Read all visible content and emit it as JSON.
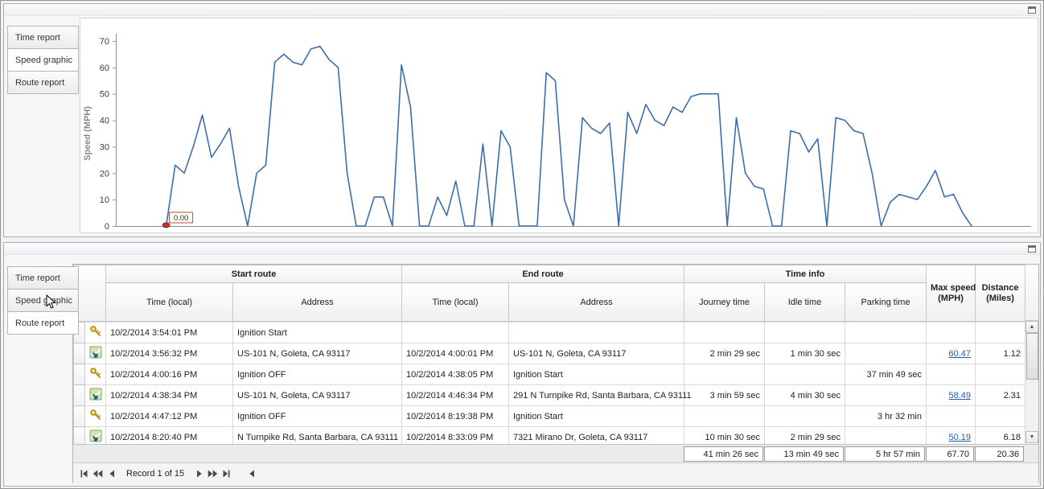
{
  "top_panel": {
    "tabs": [
      {
        "label": "Time report",
        "active": false
      },
      {
        "label": "Speed graphic",
        "active": true
      },
      {
        "label": "Route report",
        "active": false
      }
    ]
  },
  "bottom_panel": {
    "tabs": [
      {
        "label": "Time report",
        "active": false
      },
      {
        "label": "Speed graphic",
        "active": false
      },
      {
        "label": "Route report",
        "active": true
      }
    ]
  },
  "chart_data": {
    "type": "line",
    "title": "",
    "xlabel": "",
    "ylabel": "Speed (MPH)",
    "ylim": [
      0,
      70
    ],
    "yticks": [
      0,
      10,
      20,
      30,
      40,
      50,
      60,
      70
    ],
    "grid": false,
    "legend": false,
    "line_color": "#3e6ea9",
    "marker_color": "#b23b2e",
    "marker_label": "0.00",
    "values": [
      0,
      23,
      20,
      30,
      42,
      26,
      31,
      37,
      15,
      0,
      20,
      23,
      62,
      65,
      62,
      61,
      67,
      68,
      63,
      60,
      20,
      0,
      0,
      11,
      11,
      0,
      61,
      45,
      0,
      0,
      11,
      4,
      17,
      0,
      0,
      31,
      0,
      36,
      30,
      0,
      0,
      0,
      58,
      55,
      10,
      0,
      41,
      37,
      35,
      39,
      0,
      43,
      35,
      46,
      40,
      38,
      45,
      43,
      49,
      50,
      50,
      50,
      0,
      41,
      20,
      15,
      14,
      0,
      0,
      36,
      35,
      28,
      33,
      0,
      41,
      40,
      36,
      35,
      20,
      0,
      9,
      12,
      11,
      10,
      15,
      21,
      11,
      12,
      5,
      0
    ]
  },
  "table": {
    "group_headers": [
      "Start route",
      "End route",
      "Time info"
    ],
    "columns": {
      "start_time": "Time (local)",
      "start_address": "Address",
      "end_time": "Time (local)",
      "end_address": "Address",
      "journey": "Journey time",
      "idle": "Idle time",
      "parking": "Parking time",
      "max_speed_1": "Max speed",
      "max_speed_2": "(MPH)",
      "distance_1": "Distance",
      "distance_2": "(Miles)"
    },
    "link_color": "#2b5d9b",
    "rows": [
      {
        "icon": "key",
        "start_time": "10/2/2014 3:54:01 PM",
        "start_address": "Ignition Start",
        "end_time": "",
        "end_address": "",
        "journey": "",
        "idle": "",
        "parking": "",
        "max_speed": "",
        "distance": ""
      },
      {
        "icon": "route",
        "start_time": "10/2/2014 3:56:32 PM",
        "start_address": "US-101 N, Goleta, CA 93117",
        "end_time": "10/2/2014 4:00:01 PM",
        "end_address": "US-101 N, Goleta, CA 93117",
        "journey": "2 min 29 sec",
        "idle": "1 min 30 sec",
        "parking": "",
        "max_speed": "60.47",
        "distance": "1.12"
      },
      {
        "icon": "key",
        "start_time": "10/2/2014 4:00:16 PM",
        "start_address": "Ignition OFF",
        "end_time": "10/2/2014 4:38:05 PM",
        "end_address": "Ignition Start",
        "journey": "",
        "idle": "",
        "parking": "37 min 49 sec",
        "max_speed": "",
        "distance": ""
      },
      {
        "icon": "route",
        "start_time": "10/2/2014 4:38:34 PM",
        "start_address": "US-101 N, Goleta, CA 93117",
        "end_time": "10/2/2014 4:46:34 PM",
        "end_address": "291 N Turnpike Rd, Santa Barbara, CA 93111",
        "journey": "3 min 59 sec",
        "idle": "4 min 30 sec",
        "parking": "",
        "max_speed": "58.49",
        "distance": "2.31"
      },
      {
        "icon": "key",
        "start_time": "10/2/2014 4:47:12 PM",
        "start_address": "Ignition OFF",
        "end_time": "10/2/2014 8:19:38 PM",
        "end_address": "Ignition Start",
        "journey": "",
        "idle": "",
        "parking": "3 hr 32 min",
        "max_speed": "",
        "distance": ""
      },
      {
        "icon": "route",
        "start_time": "10/2/2014 8:20:40 PM",
        "start_address": "N Turnpike Rd, Santa Barbara, CA 93111",
        "end_time": "10/2/2014 8:33:09 PM",
        "end_address": "7321 Mirano Dr, Goleta, CA 93117",
        "journey": "10 min 30 sec",
        "idle": "2 min 29 sec",
        "parking": "",
        "max_speed": "50.19",
        "distance": "6.18"
      }
    ],
    "summary": {
      "journey": "41 min 26 sec",
      "idle": "13 min 49 sec",
      "parking": "5 hr 57 min",
      "max_speed": "67.70",
      "distance": "20.36"
    },
    "navigator": {
      "label": "Record 1 of 15"
    }
  }
}
